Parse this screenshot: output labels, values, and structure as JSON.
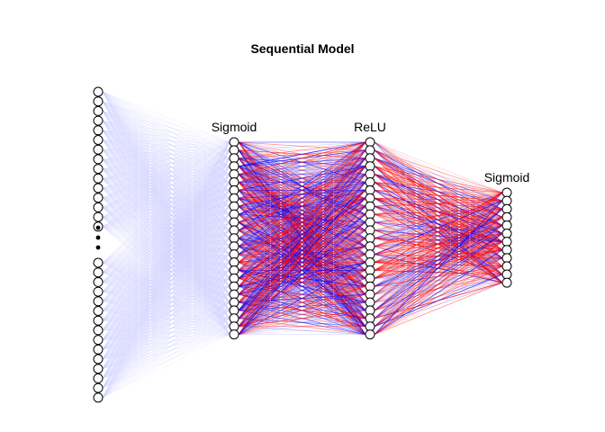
{
  "title": "Sequential Model",
  "layers": [
    {
      "label": "",
      "visible_neurons": 30,
      "truncated": true
    },
    {
      "label": "Sigmoid",
      "neurons": 25
    },
    {
      "label": "ReLU",
      "neurons": 25
    },
    {
      "label": "Sigmoid",
      "neurons": 12
    }
  ],
  "colors": {
    "positive_weight": "#ff0000",
    "negative_weight": "#0000ff",
    "input_weight": "#ccccff"
  }
}
